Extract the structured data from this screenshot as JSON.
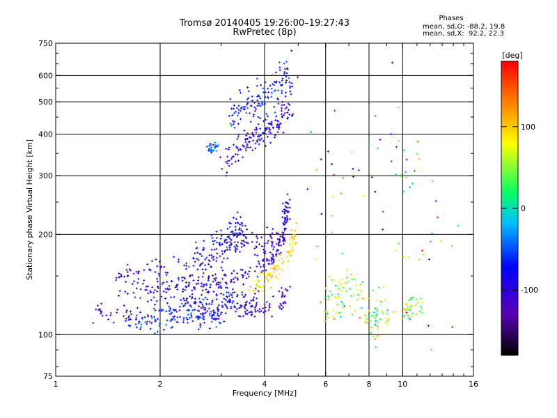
{
  "header": {
    "title": "Tromsø 20140405 19:26:00–19:27:43",
    "subtitle": "RwPretec (8p)"
  },
  "stats": {
    "heading": "Phases",
    "line_o": "mean, sd,O: -88.2, 19.8",
    "line_x": "mean, sd,X:  92.2, 22.3"
  },
  "colorbar": {
    "unit": "[deg]",
    "ticks": [
      "100",
      "0",
      "-100"
    ],
    "tick_values": [
      100,
      0,
      -100
    ],
    "range": [
      -180,
      180
    ]
  },
  "chart_data": {
    "type": "scatter",
    "xlabel": "Frequency [MHz]",
    "ylabel": "Stationary phase Virtual Height [km]",
    "x_scale": "log",
    "y_scale": "log",
    "xlim": [
      1,
      16
    ],
    "ylim": [
      75,
      750
    ],
    "xticks": [
      1,
      2,
      4,
      6,
      8,
      10,
      16
    ],
    "xtick_labels": [
      "1",
      "2",
      "4",
      "6",
      "8",
      "10",
      "16"
    ],
    "yticks": [
      75,
      100,
      200,
      300,
      400,
      500,
      600,
      750
    ],
    "ytick_labels": [
      "75",
      "100",
      "200",
      "300",
      "400",
      "500",
      "600",
      "750"
    ],
    "xgrid": [
      2,
      4,
      6,
      8,
      10
    ],
    "ygrid": [
      100,
      200,
      300,
      400,
      500,
      600
    ],
    "traces": [
      {
        "phase_mean": -110,
        "phase_sd": 10,
        "n": 140,
        "spread": 0.035,
        "x": [
          1.3,
          1.6,
          2.0,
          2.5,
          3.0,
          3.5,
          4.0,
          4.4,
          4.7
        ],
        "y": [
          118,
          116,
          114,
          114,
          116,
          118,
          120,
          125,
          132
        ]
      },
      {
        "phase_mean": -60,
        "phase_sd": 15,
        "n": 110,
        "spread": 0.04,
        "x": [
          1.6,
          1.9,
          2.2,
          2.6,
          3.0
        ],
        "y": [
          108,
          110,
          112,
          113,
          112
        ]
      },
      {
        "phase_mean": -95,
        "phase_sd": 15,
        "n": 110,
        "spread": 0.045,
        "x": [
          1.5,
          1.8,
          2.0,
          2.5,
          3.0,
          3.4,
          3.8
        ],
        "y": [
          140,
          135,
          132,
          125,
          123,
          123,
          128
        ]
      },
      {
        "phase_mean": -80,
        "phase_sd": 20,
        "n": 90,
        "spread": 0.05,
        "x": [
          2.0,
          2.4,
          2.8,
          3.2
        ],
        "y": [
          140,
          135,
          132,
          130
        ]
      },
      {
        "phase_mean": -105,
        "phase_sd": 12,
        "n": 170,
        "spread": 0.03,
        "x": [
          2.5,
          3.0,
          3.5,
          4.0,
          4.3,
          4.5,
          4.6,
          4.65
        ],
        "y": [
          140,
          145,
          150,
          162,
          175,
          195,
          225,
          255
        ]
      },
      {
        "phase_mean": -100,
        "phase_sd": 15,
        "n": 140,
        "spread": 0.04,
        "x": [
          1.5,
          1.8,
          2.2,
          2.6,
          3.0,
          3.3,
          3.6,
          4.0,
          4.3
        ],
        "y": [
          150,
          155,
          160,
          162,
          170,
          185,
          195,
          180,
          200
        ]
      },
      {
        "phase_mean": -85,
        "phase_sd": 20,
        "n": 100,
        "spread": 0.05,
        "x": [
          2.5,
          2.9,
          3.2,
          3.4
        ],
        "y": [
          170,
          185,
          200,
          215
        ]
      },
      {
        "phase_mean": 95,
        "phase_sd": 12,
        "n": 90,
        "spread": 0.03,
        "x": [
          3.6,
          4.0,
          4.4,
          4.7,
          4.9
        ],
        "y": [
          135,
          145,
          160,
          175,
          205
        ]
      },
      {
        "phase_mean": -95,
        "phase_sd": 18,
        "n": 150,
        "spread": 0.05,
        "x": [
          3.0,
          3.3,
          3.6,
          3.9,
          4.2,
          4.5,
          4.7
        ],
        "y": [
          330,
          360,
          380,
          400,
          420,
          450,
          480
        ]
      },
      {
        "phase_mean": -75,
        "phase_sd": 22,
        "n": 130,
        "spread": 0.06,
        "x": [
          3.2,
          3.5,
          3.8,
          4.1,
          4.4,
          4.7
        ],
        "y": [
          450,
          480,
          500,
          520,
          560,
          600
        ]
      },
      {
        "phase_mean": -45,
        "phase_sd": 15,
        "n": 25,
        "spread": 0.02,
        "x": [
          2.75,
          2.85,
          2.95
        ],
        "y": [
          365,
          362,
          365
        ]
      },
      {
        "phase_mean": 60,
        "phase_sd": 40,
        "n": 130,
        "spread": 0.07,
        "x": [
          6.0,
          6.5,
          7.0,
          7.5,
          8.0,
          8.5,
          9.0
        ],
        "y": [
          120,
          130,
          140,
          125,
          110,
          115,
          120
        ]
      },
      {
        "phase_mean": 0,
        "phase_sd": 100,
        "n": 70,
        "spread": 0.3,
        "x": [
          5.5,
          7.0,
          9.0,
          11.0,
          13.0
        ],
        "y": [
          200,
          300,
          400,
          250,
          150
        ]
      },
      {
        "phase_mean": 60,
        "phase_sd": 40,
        "n": 40,
        "spread": 0.05,
        "x": [
          10.0,
          10.5,
          11.0,
          11.5
        ],
        "y": [
          118,
          120,
          118,
          122
        ]
      }
    ]
  },
  "colors": {
    "colormap": [
      "#000000",
      "#6a00b8",
      "#0000ff",
      "#00bfff",
      "#00ff66",
      "#ffff00",
      "#ff8000",
      "#ff0000"
    ],
    "grid": "#000000",
    "axes": "#000000"
  }
}
